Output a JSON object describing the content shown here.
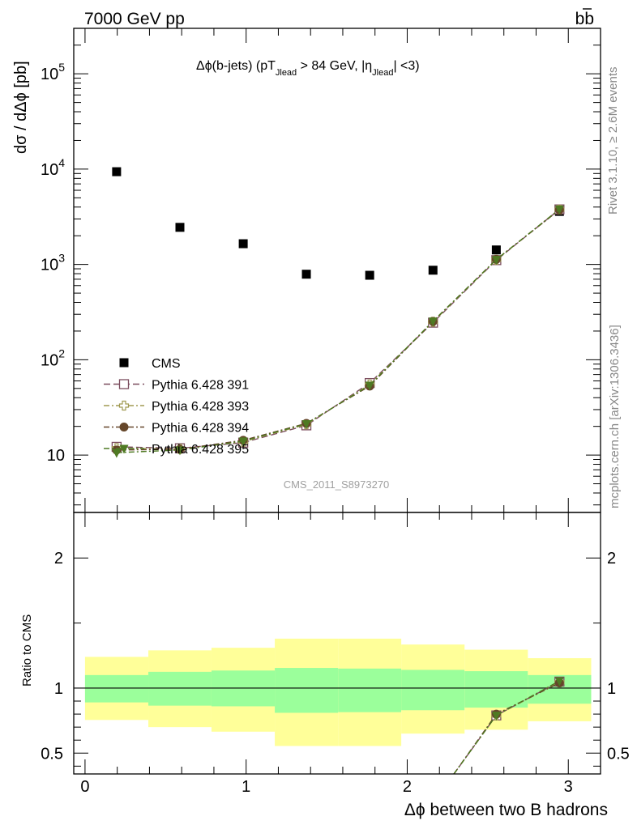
{
  "header": {
    "left": "7000 GeV pp",
    "right_main": "b",
    "right_bar": "b"
  },
  "side_labels": {
    "upper": "Rivet 3.1.10, ≥ 2.6M events",
    "lower": "mcplots.cern.ch [arXiv:1306.3436]"
  },
  "watermark": "CMS_2011_S8973270",
  "chart_data": [
    {
      "type": "scatter",
      "panel": "main",
      "title_parts": [
        "Δϕ(b-jets) (pT",
        "Jlead",
        " >  84 GeV, |η",
        "Jlead",
        "| <3)"
      ],
      "ylabel": "dσ / dΔϕ [pb]",
      "yscale": "log",
      "ylim": [
        2.5,
        300000
      ],
      "xlim": [
        -0.07,
        3.2
      ],
      "y_ticks": [
        {
          "value": 10,
          "base": "10",
          "exp": ""
        },
        {
          "value": 100,
          "base": "10",
          "exp": "2"
        },
        {
          "value": 1000,
          "base": "10",
          "exp": "3"
        },
        {
          "value": 10000,
          "base": "10",
          "exp": "4"
        },
        {
          "value": 100000,
          "base": "10",
          "exp": "5"
        }
      ],
      "x": [
        0.196,
        0.589,
        0.982,
        1.374,
        1.767,
        2.16,
        2.553,
        2.945
      ],
      "series": [
        {
          "name": "CMS",
          "color": "#000000",
          "marker": "square-filled",
          "line": "none",
          "values": [
            9400,
            2450,
            1650,
            790,
            770,
            870,
            1420,
            3600
          ]
        },
        {
          "name": "Pythia 6.428 391",
          "color": "#7b4d5e",
          "marker": "square-open",
          "line": "dash",
          "values": [
            12.2,
            11.8,
            13.5,
            20.5,
            57,
            245,
            1110,
            3780
          ]
        },
        {
          "name": "Pythia 6.428 393",
          "color": "#a09a52",
          "marker": "cross-open",
          "line": "dashdot",
          "values": [
            11.8,
            11.6,
            13.8,
            21.0,
            55,
            250,
            1120,
            3760
          ]
        },
        {
          "name": "Pythia 6.428 394",
          "color": "#65462a",
          "marker": "circle-filled",
          "line": "dashdot",
          "values": [
            11.3,
            11.5,
            14.3,
            21.5,
            53,
            252,
            1130,
            3740
          ]
        },
        {
          "name": "Pythia 6.428 395",
          "color": "#4f7a23",
          "marker": "triangle-down-filled",
          "line": "dashdot",
          "values": [
            10.6,
            11.3,
            14.0,
            21.3,
            54,
            254,
            1125,
            3800
          ]
        }
      ],
      "legend": "lower-left"
    },
    {
      "type": "scatter",
      "panel": "ratio",
      "ylabel": "Ratio to CMS",
      "xlabel": "Δϕ between two B hadrons",
      "ylim": [
        0.34,
        2.35
      ],
      "xlim": [
        -0.07,
        3.2
      ],
      "x_ticks": [
        "0",
        "1",
        "2",
        "3"
      ],
      "y_ticks": [
        "0.5",
        "1",
        "2"
      ],
      "bin_edges": [
        0,
        0.393,
        0.785,
        1.178,
        1.571,
        1.963,
        2.356,
        2.749,
        3.142
      ],
      "band_inner": [
        [
          0.89,
          1.1
        ],
        [
          0.865,
          1.125
        ],
        [
          0.86,
          1.135
        ],
        [
          0.81,
          1.155
        ],
        [
          0.815,
          1.15
        ],
        [
          0.83,
          1.14
        ],
        [
          0.85,
          1.13
        ],
        [
          0.88,
          1.1
        ]
      ],
      "band_outer": [
        [
          0.755,
          1.24
        ],
        [
          0.7,
          1.29
        ],
        [
          0.665,
          1.31
        ],
        [
          0.555,
          1.38
        ],
        [
          0.555,
          1.38
        ],
        [
          0.65,
          1.335
        ],
        [
          0.68,
          1.295
        ],
        [
          0.745,
          1.23
        ]
      ],
      "x": [
        2.553,
        2.945
      ],
      "series": [
        {
          "name": "Pythia 6.428 391",
          "values": [
            0.79,
            1.05
          ]
        },
        {
          "name": "Pythia 6.428 393",
          "values": [
            0.79,
            1.045
          ]
        },
        {
          "name": "Pythia 6.428 394",
          "values": [
            0.8,
            1.04
          ]
        },
        {
          "name": "Pythia 6.428 395",
          "values": [
            0.79,
            1.055
          ]
        }
      ],
      "colors": {
        "band_inner": "#9bff9b",
        "band_outer": "#ffff99"
      }
    }
  ]
}
